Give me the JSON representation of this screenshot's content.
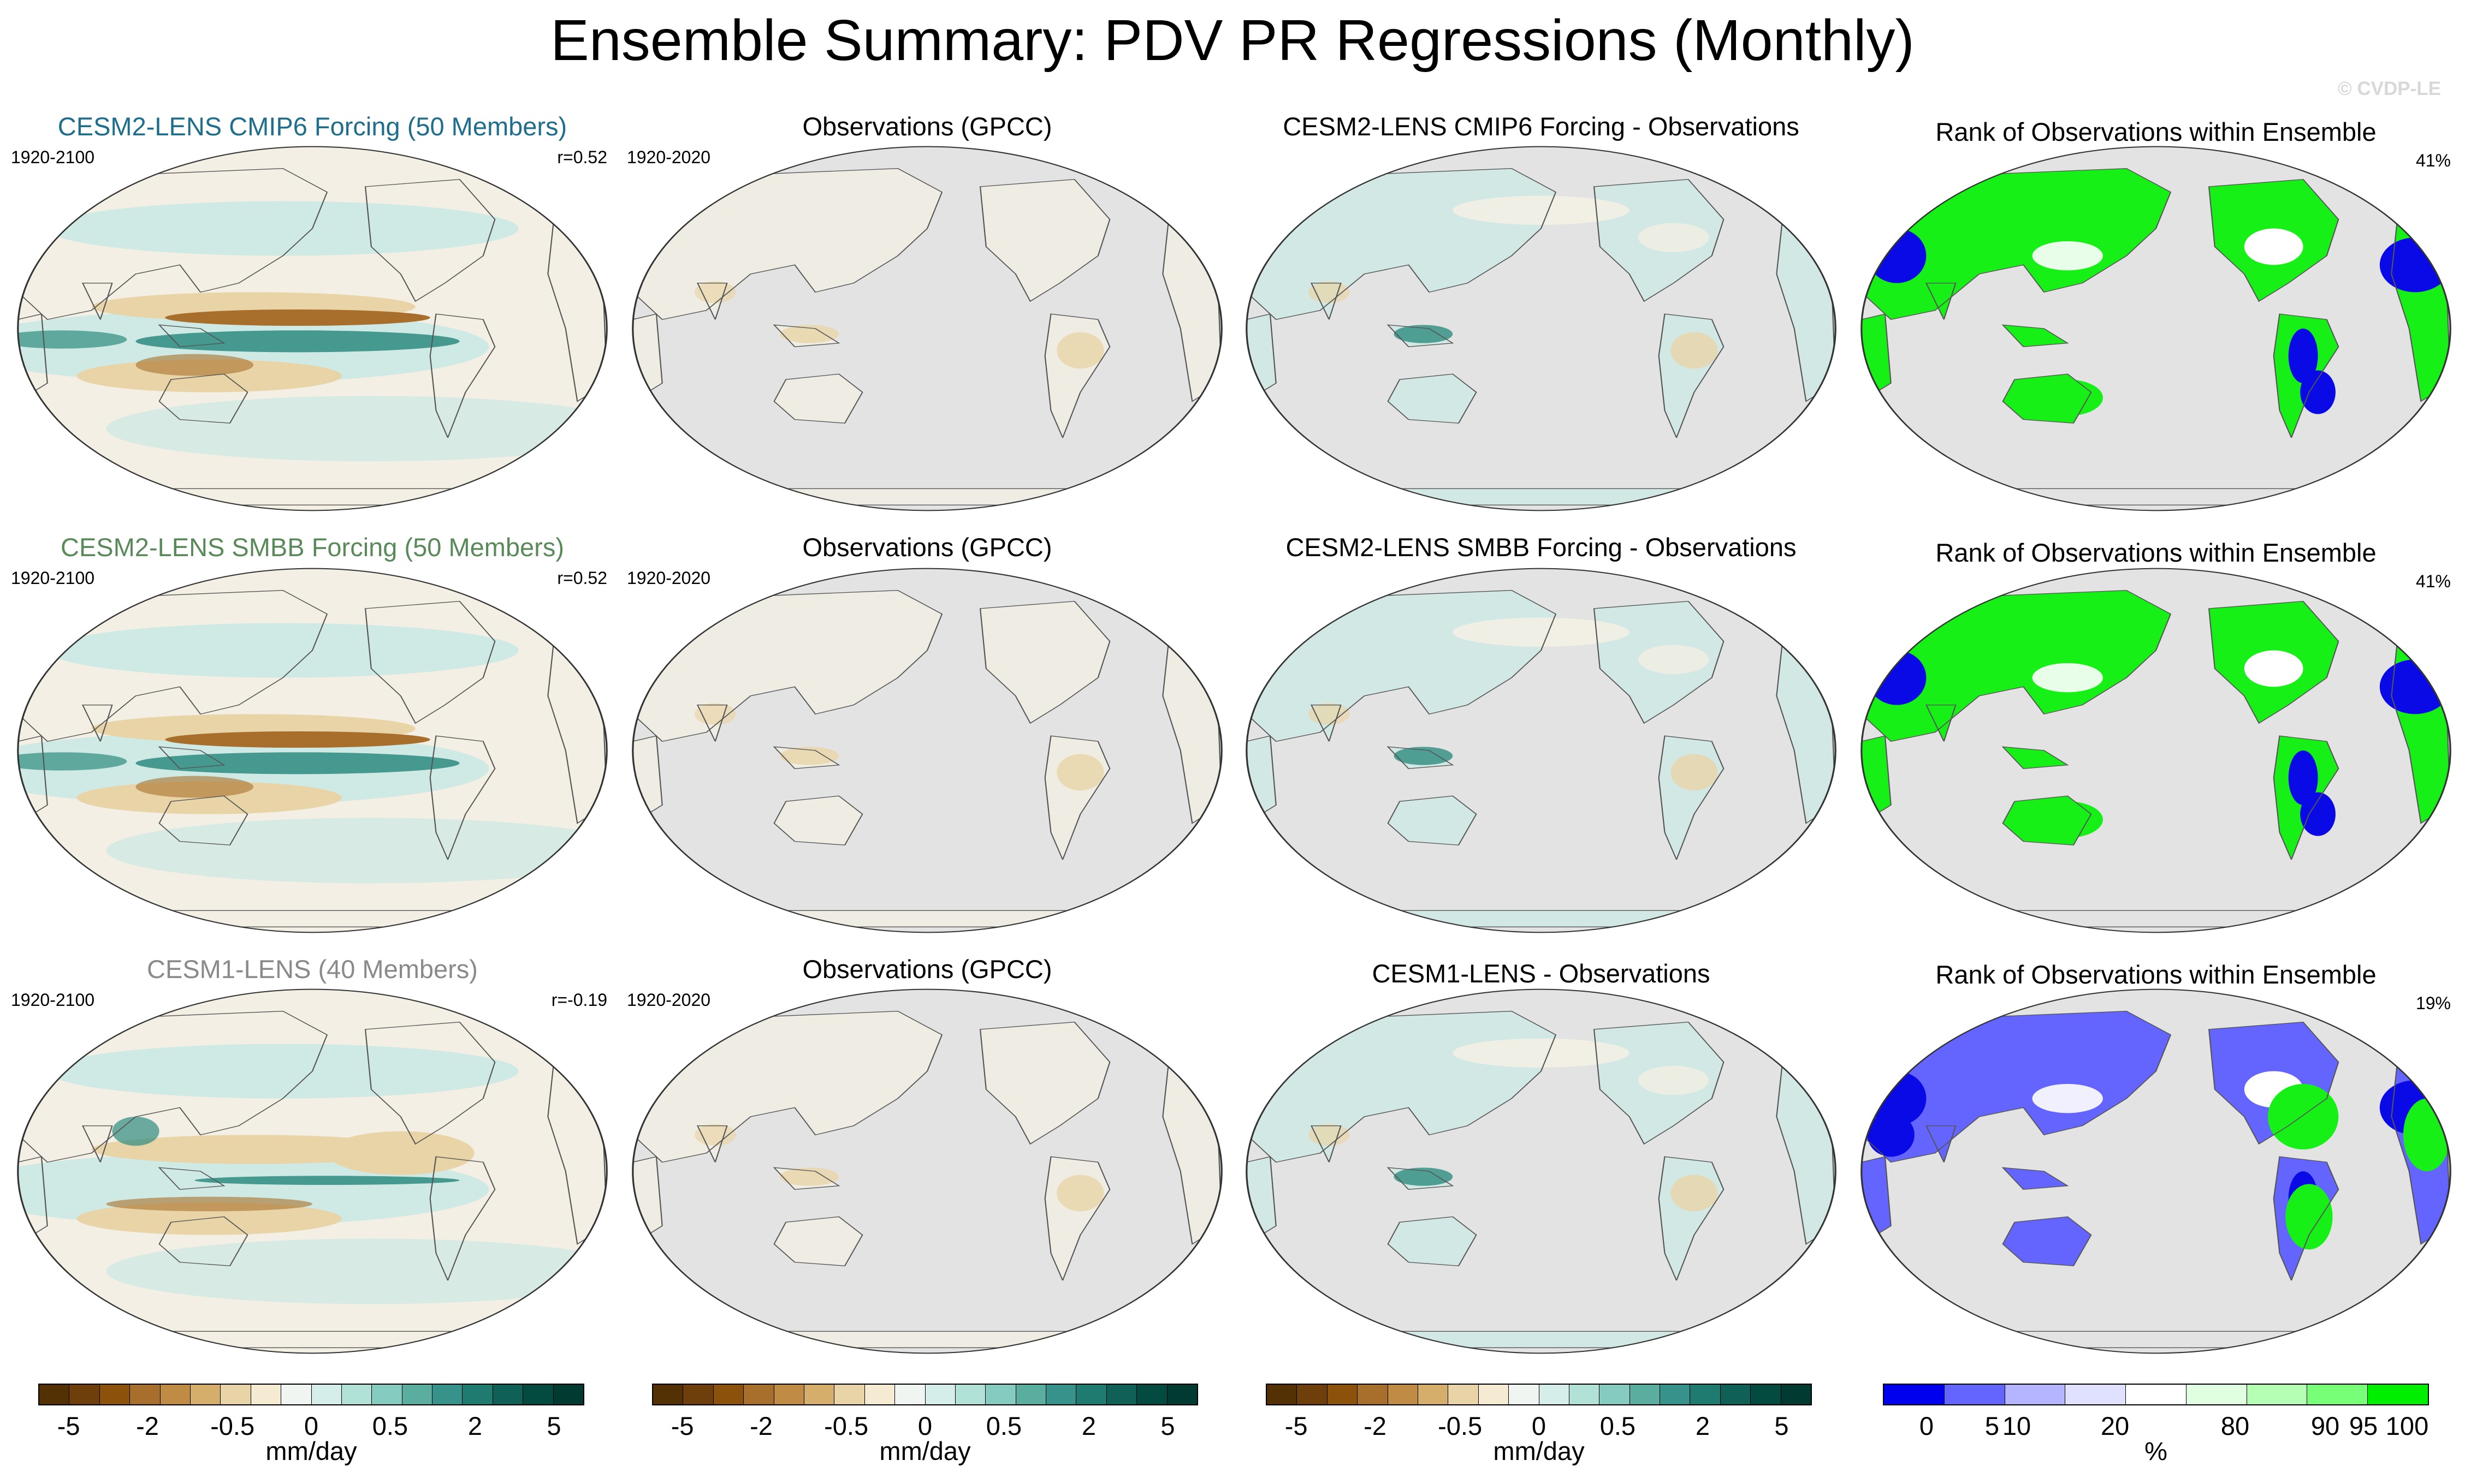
{
  "figure": {
    "title": "Ensemble Summary: PDV PR Regressions (Monthly)",
    "watermark": "© CVDP-LE"
  },
  "colors": {
    "row1_title": "#1e6e8c",
    "row2_title": "#5a8a5a",
    "row3_title": "#8a8a8a",
    "ocean_land_mask": "#e3e3e3",
    "brown_strong": "#a86f2c",
    "brown_light": "#e9d4a8",
    "teal_strong": "#2d8b80",
    "teal_light": "#cfe9e4",
    "pale": "#f3efe4",
    "rank_blue": "#0a0ae6",
    "rank_lightblue": "#6464ff",
    "rank_green": "#16f016",
    "rank_lightgreen": "#b8f8b8"
  },
  "rows": [
    {
      "model_title": "CESM2-LENS CMIP6 Forcing (50 Members)",
      "model_years": "1920-2100",
      "pattern_corr": "r=0.52",
      "obs_title": "Observations (GPCC)",
      "obs_years": "1920-2020",
      "diff_title": "CESM2-LENS CMIP6 Forcing - Observations",
      "rank_title": "Rank of Observations within Ensemble",
      "rank_pct": "41%"
    },
    {
      "model_title": "CESM2-LENS SMBB Forcing (50 Members)",
      "model_years": "1920-2100",
      "pattern_corr": "r=0.52",
      "obs_title": "Observations (GPCC)",
      "obs_years": "1920-2020",
      "diff_title": "CESM2-LENS SMBB Forcing - Observations",
      "rank_title": "Rank of Observations within Ensemble",
      "rank_pct": "41%"
    },
    {
      "model_title": "CESM1-LENS (40 Members)",
      "model_years": "1920-2100",
      "pattern_corr": "r=-0.19",
      "obs_title": "Observations (GPCC)",
      "obs_years": "1920-2020",
      "diff_title": "CESM1-LENS - Observations",
      "rank_title": "Rank of Observations within Ensemble",
      "rank_pct": "19%"
    }
  ],
  "pr_colorbar": {
    "colors": [
      "#543005",
      "#6e3f0b",
      "#8c510a",
      "#a86f2c",
      "#bf8b45",
      "#d4ae6a",
      "#e9d4a8",
      "#f5ebd3",
      "#f0f5f2",
      "#d6eee9",
      "#b2e1d7",
      "#86cbbf",
      "#5aae9f",
      "#36928a",
      "#1f7a70",
      "#0f6157",
      "#034a40",
      "#013a30"
    ],
    "labels": [
      "-5",
      "-2",
      "-0.5",
      "0",
      "0.5",
      "2",
      "5"
    ],
    "unit": "mm/day"
  },
  "rank_colorbar": {
    "colors": [
      "#0000ee",
      "#6464ff",
      "#b4b4ff",
      "#e0e0ff",
      "#ffffff",
      "#e0ffe0",
      "#b4ffb4",
      "#78ff78",
      "#00ee00"
    ],
    "labels": [
      "0",
      "5",
      "10",
      "20",
      "80",
      "90",
      "95",
      "100"
    ],
    "unit": "%"
  }
}
